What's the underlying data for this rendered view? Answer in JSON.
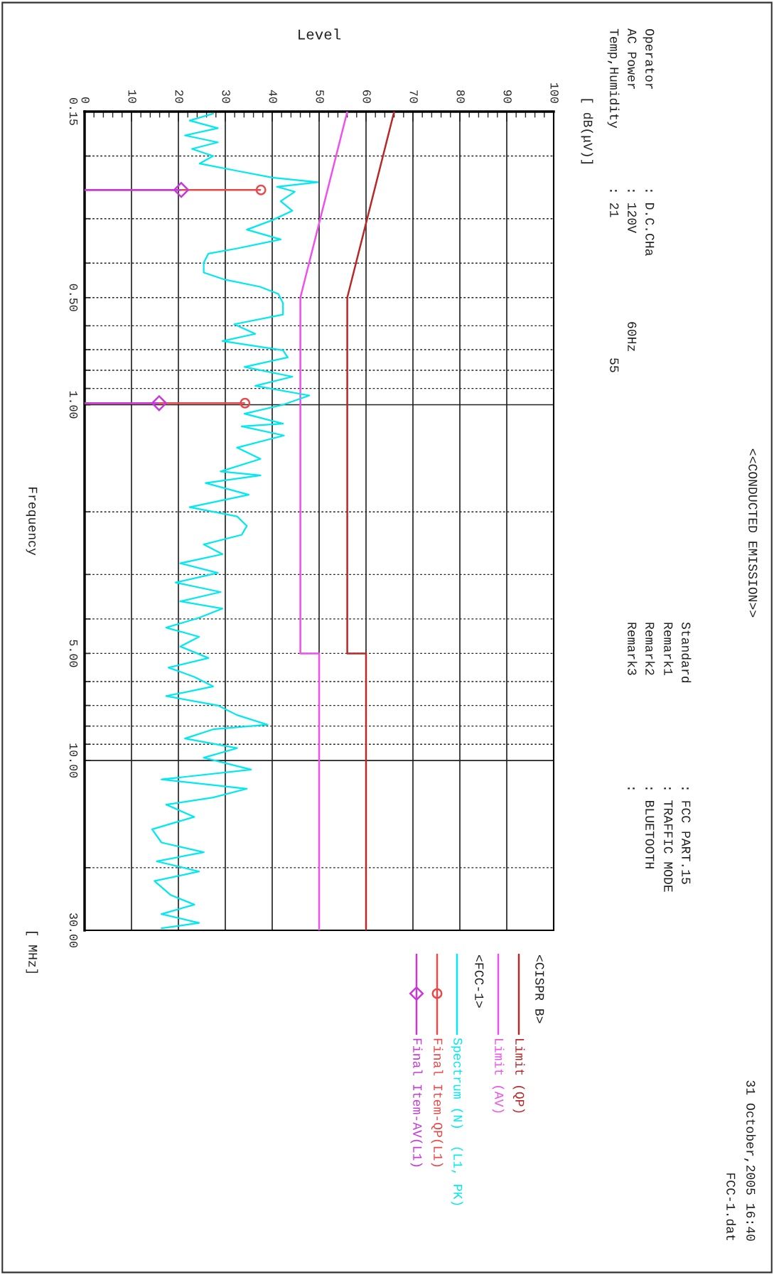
{
  "chart_data": {
    "type": "line",
    "title": "<<CONDUCTED EMISSION>>",
    "xlabel": "Level",
    "ylabel": "Frequency",
    "orientation": "horizontal",
    "log": "y",
    "grid": true,
    "legend": "bottom",
    "line_style": "solid",
    "xlim": [
      0,
      100
    ],
    "ylim": [
      30,
      0.15
    ],
    "yticks": [
      {
        "value": 0.15,
        "label": "0.15"
      },
      {
        "value": 0.2,
        "label": null
      },
      {
        "value": 0.3,
        "label": null
      },
      {
        "value": 0.4,
        "label": null
      },
      {
        "value": 0.5,
        "label": "0.50"
      },
      {
        "value": 0.6,
        "label": null
      },
      {
        "value": 0.7,
        "label": null
      },
      {
        "value": 0.8,
        "label": null
      },
      {
        "value": 0.9,
        "label": null
      },
      {
        "value": 1,
        "label": "1.00"
      },
      {
        "value": 2,
        "label": null
      },
      {
        "value": 3,
        "label": null
      },
      {
        "value": 4,
        "label": null
      },
      {
        "value": 5,
        "label": "5.00"
      },
      {
        "value": 6,
        "label": null
      },
      {
        "value": 7,
        "label": null
      },
      {
        "value": 8,
        "label": null
      },
      {
        "value": 9,
        "label": null
      },
      {
        "value": 10,
        "label": "10.00"
      },
      {
        "value": 20,
        "label": null
      },
      {
        "value": 30,
        "label": "30.00"
      }
    ],
    "xticks": [
      0,
      10,
      20,
      30,
      40,
      50,
      60,
      70,
      80,
      90,
      100
    ],
    "annotations": [
      "[ dB(μV)]",
      "[ MHz]",
      "Operator",
      ": D.C.CHa",
      "AC Power",
      ": 120V",
      "60Hz",
      "Temp,Humidity",
      ": 21",
      "55",
      "Standard",
      ": FCC PART.15",
      "Remark1",
      ": TRAFFIC MODE",
      "Remark2",
      ": BLUETOOTH",
      "Remark3",
      ":",
      "31 October,2005 16:40",
      "FCC-1.dat",
      "<CISPR B>",
      "<FCC-1>"
    ],
    "series": [
      {
        "name": "Limit (QP)",
        "color": "#b82828",
        "x": [
          0.15,
          0.5,
          5,
          5,
          30
        ],
        "values": [
          66,
          56,
          56,
          60,
          60
        ]
      },
      {
        "name": "Limit (AV)",
        "color": "#ee50ee",
        "x": [
          0.15,
          0.5,
          5,
          5,
          30
        ],
        "values": [
          56,
          46,
          46,
          50,
          50
        ]
      },
      {
        "name": "Spectrum (N)  (L1, PK)",
        "color": "#00e8f0",
        "x": [
          0.152,
          0.159,
          0.167,
          0.175,
          0.183,
          0.191,
          0.2,
          0.21,
          0.22,
          0.23,
          0.237,
          0.244,
          0.252,
          0.268,
          0.285,
          0.303,
          0.322,
          0.343,
          0.364,
          0.376,
          0.399,
          0.425,
          0.445,
          0.466,
          0.488,
          0.518,
          0.558,
          0.594,
          0.632,
          0.662,
          0.703,
          0.736,
          0.783,
          0.834,
          0.885,
          0.942,
          1.0,
          1.06,
          1.13,
          1.15,
          1.22,
          1.32,
          1.42,
          1.54,
          1.58,
          1.66,
          1.79,
          1.94,
          2.06,
          2.19,
          2.32,
          2.47,
          2.63,
          2.79,
          2.97,
          3.16,
          3.36,
          3.57,
          3.74,
          3.97,
          4.23,
          4.49,
          4.78,
          5.15,
          5.48,
          5.82,
          6.19,
          6.59,
          7.0,
          7.45,
          7.93,
          8.17,
          8.67,
          9.23,
          9.82,
          10.6,
          11.3,
          12.0,
          12.7,
          13.3,
          14.4,
          15.6,
          17.0,
          18.1,
          19.2,
          20.5,
          21.8,
          23.9,
          25.4,
          27.0,
          28.6,
          29.6
        ],
        "values": [
          27.4,
          22.4,
          28.4,
          21.4,
          28.4,
          22.9,
          27.4,
          24.5,
          32.4,
          40,
          49.7,
          41,
          44.8,
          41.8,
          44.3,
          40,
          34.6,
          41.8,
          32.4,
          26.4,
          25.4,
          25.4,
          29.9,
          37.4,
          41.3,
          42.3,
          42.3,
          31.9,
          36.4,
          29.4,
          42.3,
          43.3,
          34.1,
          44.3,
          36.4,
          47.9,
          42.3,
          34.1,
          42.3,
          33.5,
          42.5,
          32.5,
          37.5,
          29,
          37.5,
          25.8,
          35,
          22.4,
          32.5,
          34.6,
          33.5,
          25.4,
          29.4,
          20.4,
          28.4,
          19.4,
          29,
          20.4,
          29.4,
          24.4,
          17.4,
          24.4,
          20.4,
          26.4,
          17.9,
          23.4,
          27.4,
          17.4,
          28.4,
          32.5,
          39,
          27.4,
          21.4,
          32.5,
          25.4,
          35.5,
          16.4,
          34.6,
          27.4,
          17.4,
          23.4,
          14.4,
          16.4,
          25.4,
          15.4,
          24.4,
          14.9,
          18.4,
          23.4,
          16.4,
          24.4,
          16.4
        ]
      },
      {
        "name": "Final Item-QP(L1)",
        "type": "lollipop",
        "marker": "circle",
        "color": "#e84848",
        "x": [
          0.249,
          0.99
        ],
        "values": [
          37.6,
          34.2
        ]
      },
      {
        "name": "Final Item-AV(L1)",
        "type": "lollipop",
        "marker": "diamond",
        "color": "#c838d8",
        "x": [
          0.249,
          0.99
        ],
        "values": [
          20.6,
          15.9
        ]
      }
    ]
  }
}
